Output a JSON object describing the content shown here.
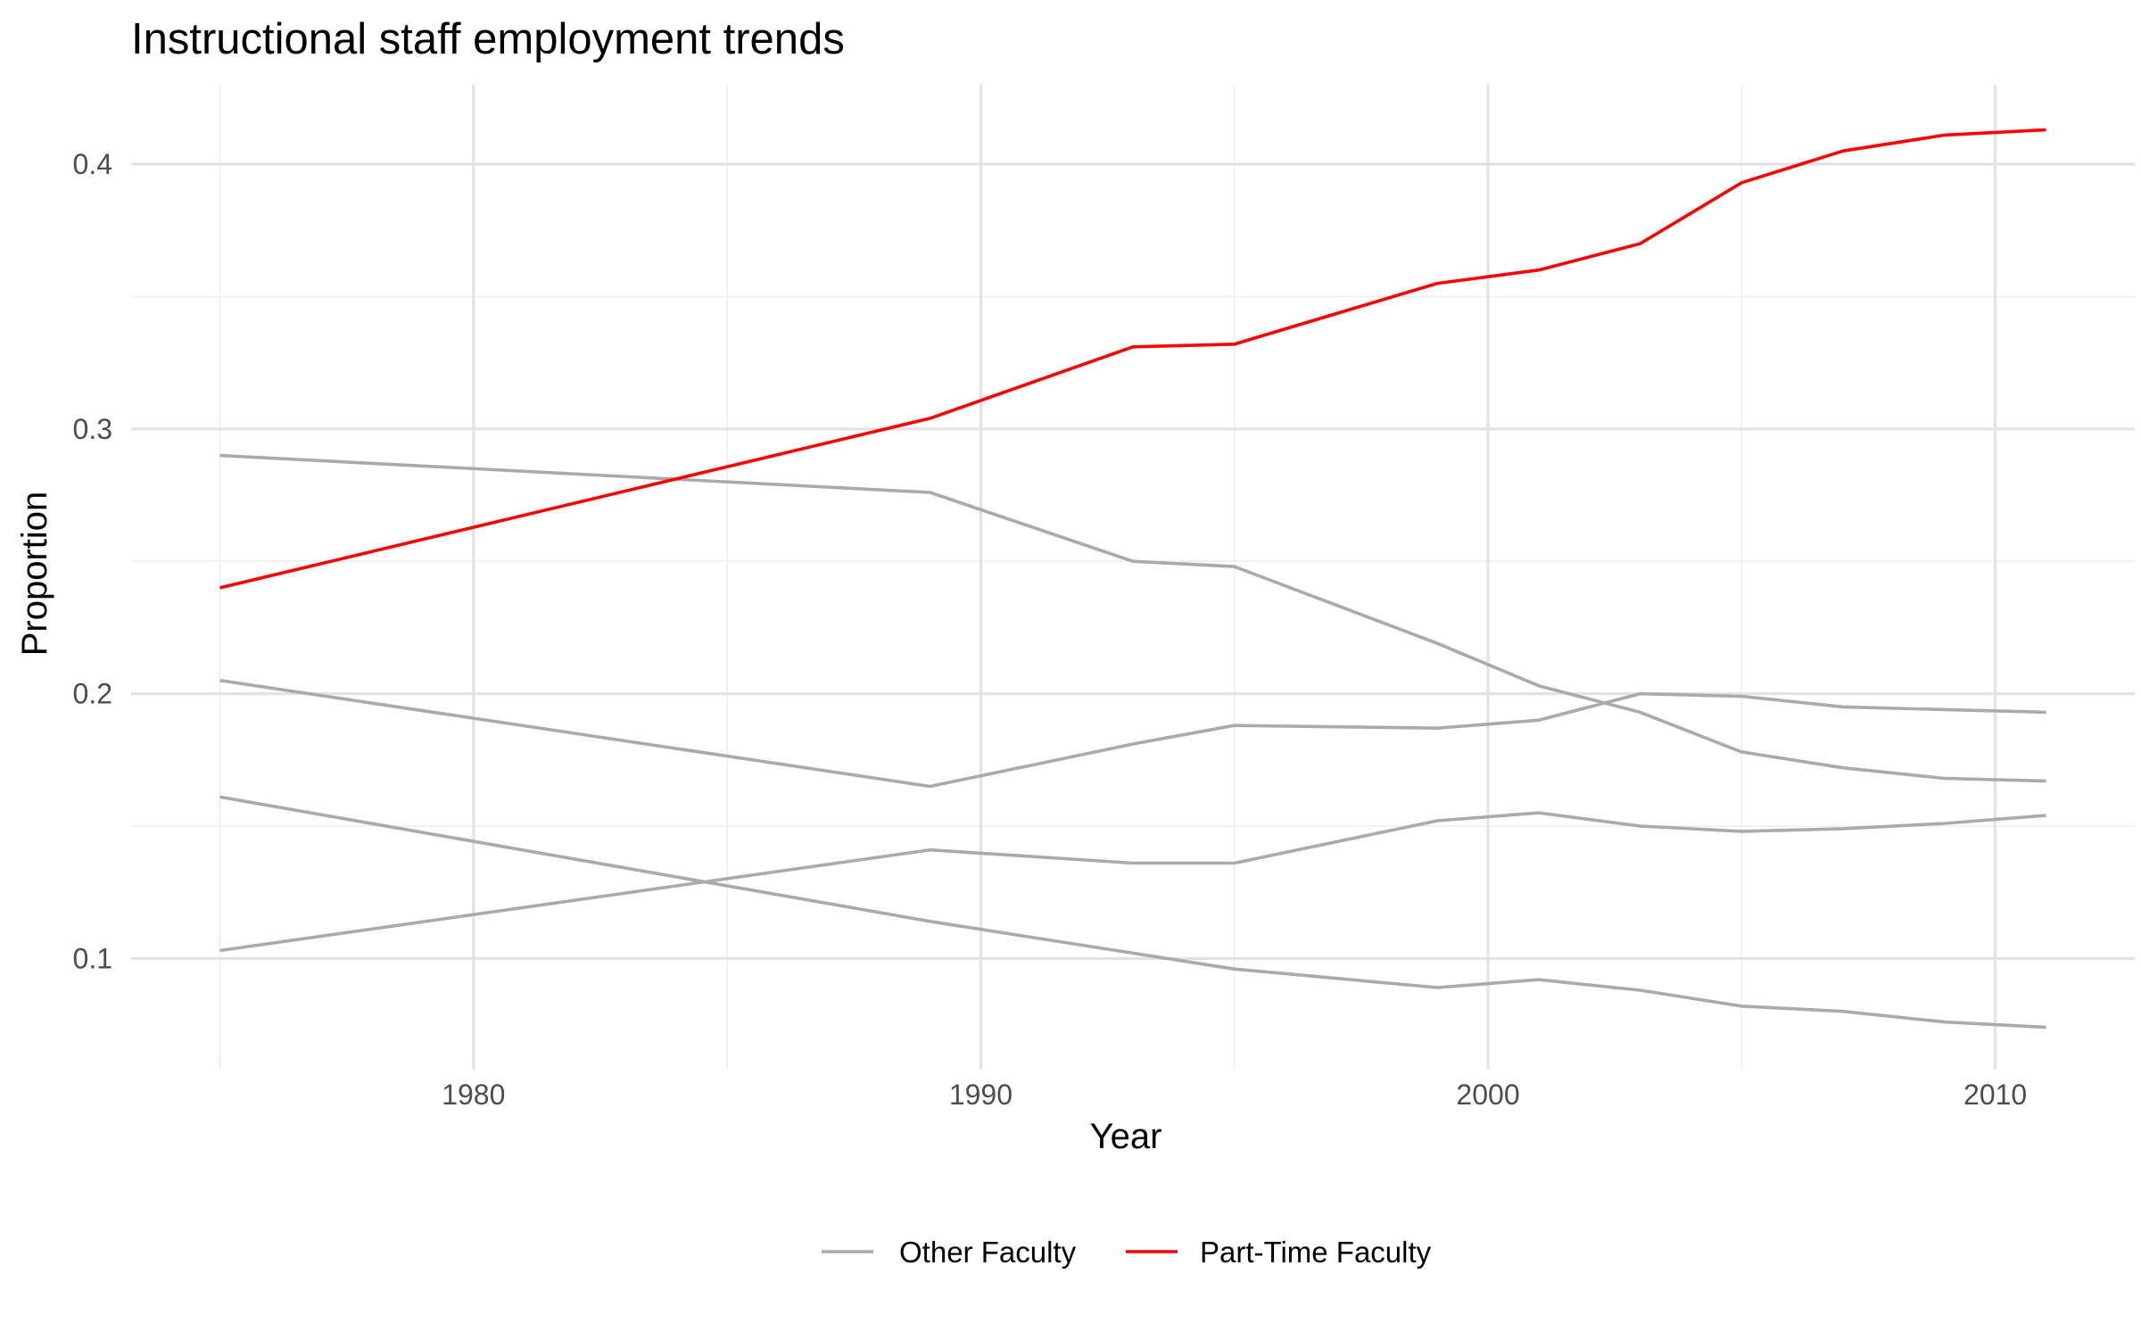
{
  "chart_data": {
    "type": "line",
    "title": "Instructional staff employment trends",
    "xlabel": "Year",
    "ylabel": "Proportion",
    "xlim": [
      1973.25,
      2012.75
    ],
    "ylim": [
      0.058,
      0.43
    ],
    "x_ticks": [
      1980,
      1990,
      2000,
      2010
    ],
    "x_minor_ticks": [
      1975,
      1985,
      1995,
      2005
    ],
    "y_ticks": [
      0.1,
      0.2,
      0.3,
      0.4
    ],
    "y_minor_ticks": [
      0.15,
      0.25,
      0.35
    ],
    "x_tick_labels": [
      "1980",
      "1990",
      "2000",
      "2010"
    ],
    "y_tick_labels": [
      "0.1",
      "0.2",
      "0.3",
      "0.4"
    ],
    "grid": true,
    "legend_position": "bottom",
    "legend": [
      {
        "label": "Other Faculty",
        "color": "#aaaaaa"
      },
      {
        "label": "Part-Time Faculty",
        "color": "#ff0000"
      }
    ],
    "x": [
      1975,
      1989,
      1993,
      1995,
      1999,
      2001,
      2003,
      2005,
      2007,
      2009,
      2011
    ],
    "series": [
      {
        "group": "Other Faculty",
        "color": "#aaaaaa",
        "values": [
          0.29,
          0.276,
          0.25,
          0.248,
          0.219,
          0.203,
          0.193,
          0.178,
          0.172,
          0.168,
          0.167
        ]
      },
      {
        "group": "Other Faculty",
        "color": "#aaaaaa",
        "values": [
          0.205,
          0.165,
          0.181,
          0.188,
          0.187,
          0.19,
          0.2,
          0.199,
          0.195,
          0.194,
          0.193
        ]
      },
      {
        "group": "Other Faculty",
        "color": "#aaaaaa",
        "values": [
          0.161,
          0.114,
          0.102,
          0.096,
          0.089,
          0.092,
          0.088,
          0.082,
          0.08,
          0.076,
          0.074
        ]
      },
      {
        "group": "Other Faculty",
        "color": "#aaaaaa",
        "values": [
          0.103,
          0.141,
          0.136,
          0.136,
          0.152,
          0.155,
          0.15,
          0.148,
          0.149,
          0.151,
          0.154
        ]
      },
      {
        "group": "Part-Time Faculty",
        "color": "#ff0000",
        "values": [
          0.24,
          0.304,
          0.331,
          0.332,
          0.355,
          0.36,
          0.37,
          0.393,
          0.405,
          0.411,
          0.413
        ]
      }
    ]
  }
}
